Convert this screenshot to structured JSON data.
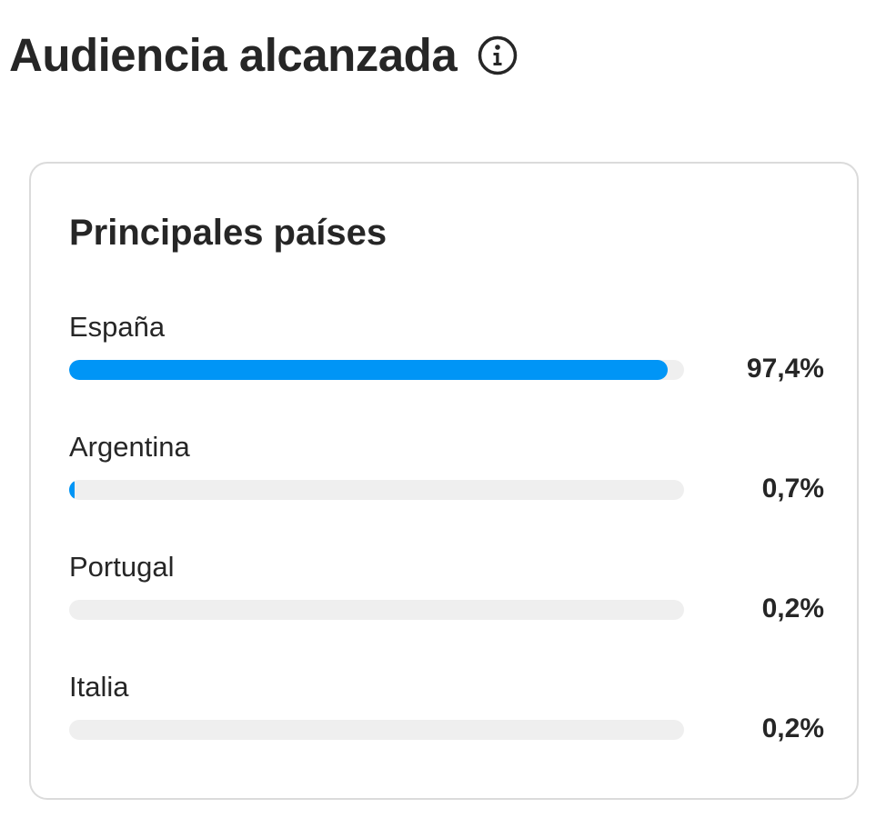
{
  "header": {
    "title": "Audiencia alcanzada",
    "info_icon": "info-circle-icon"
  },
  "card": {
    "title": "Principales países",
    "countries": [
      {
        "name": "España",
        "value_label": "97,4%",
        "percent": 97.4
      },
      {
        "name": "Argentina",
        "value_label": "0,7%",
        "percent": 0.7
      },
      {
        "name": "Portugal",
        "value_label": "0,2%",
        "percent": 0.2
      },
      {
        "name": "Italia",
        "value_label": "0,2%",
        "percent": 0.2
      }
    ]
  },
  "colors": {
    "bar_fill": "#0095f6",
    "bar_track": "#efefef",
    "text": "#262626",
    "card_border": "#dbdbdb"
  }
}
